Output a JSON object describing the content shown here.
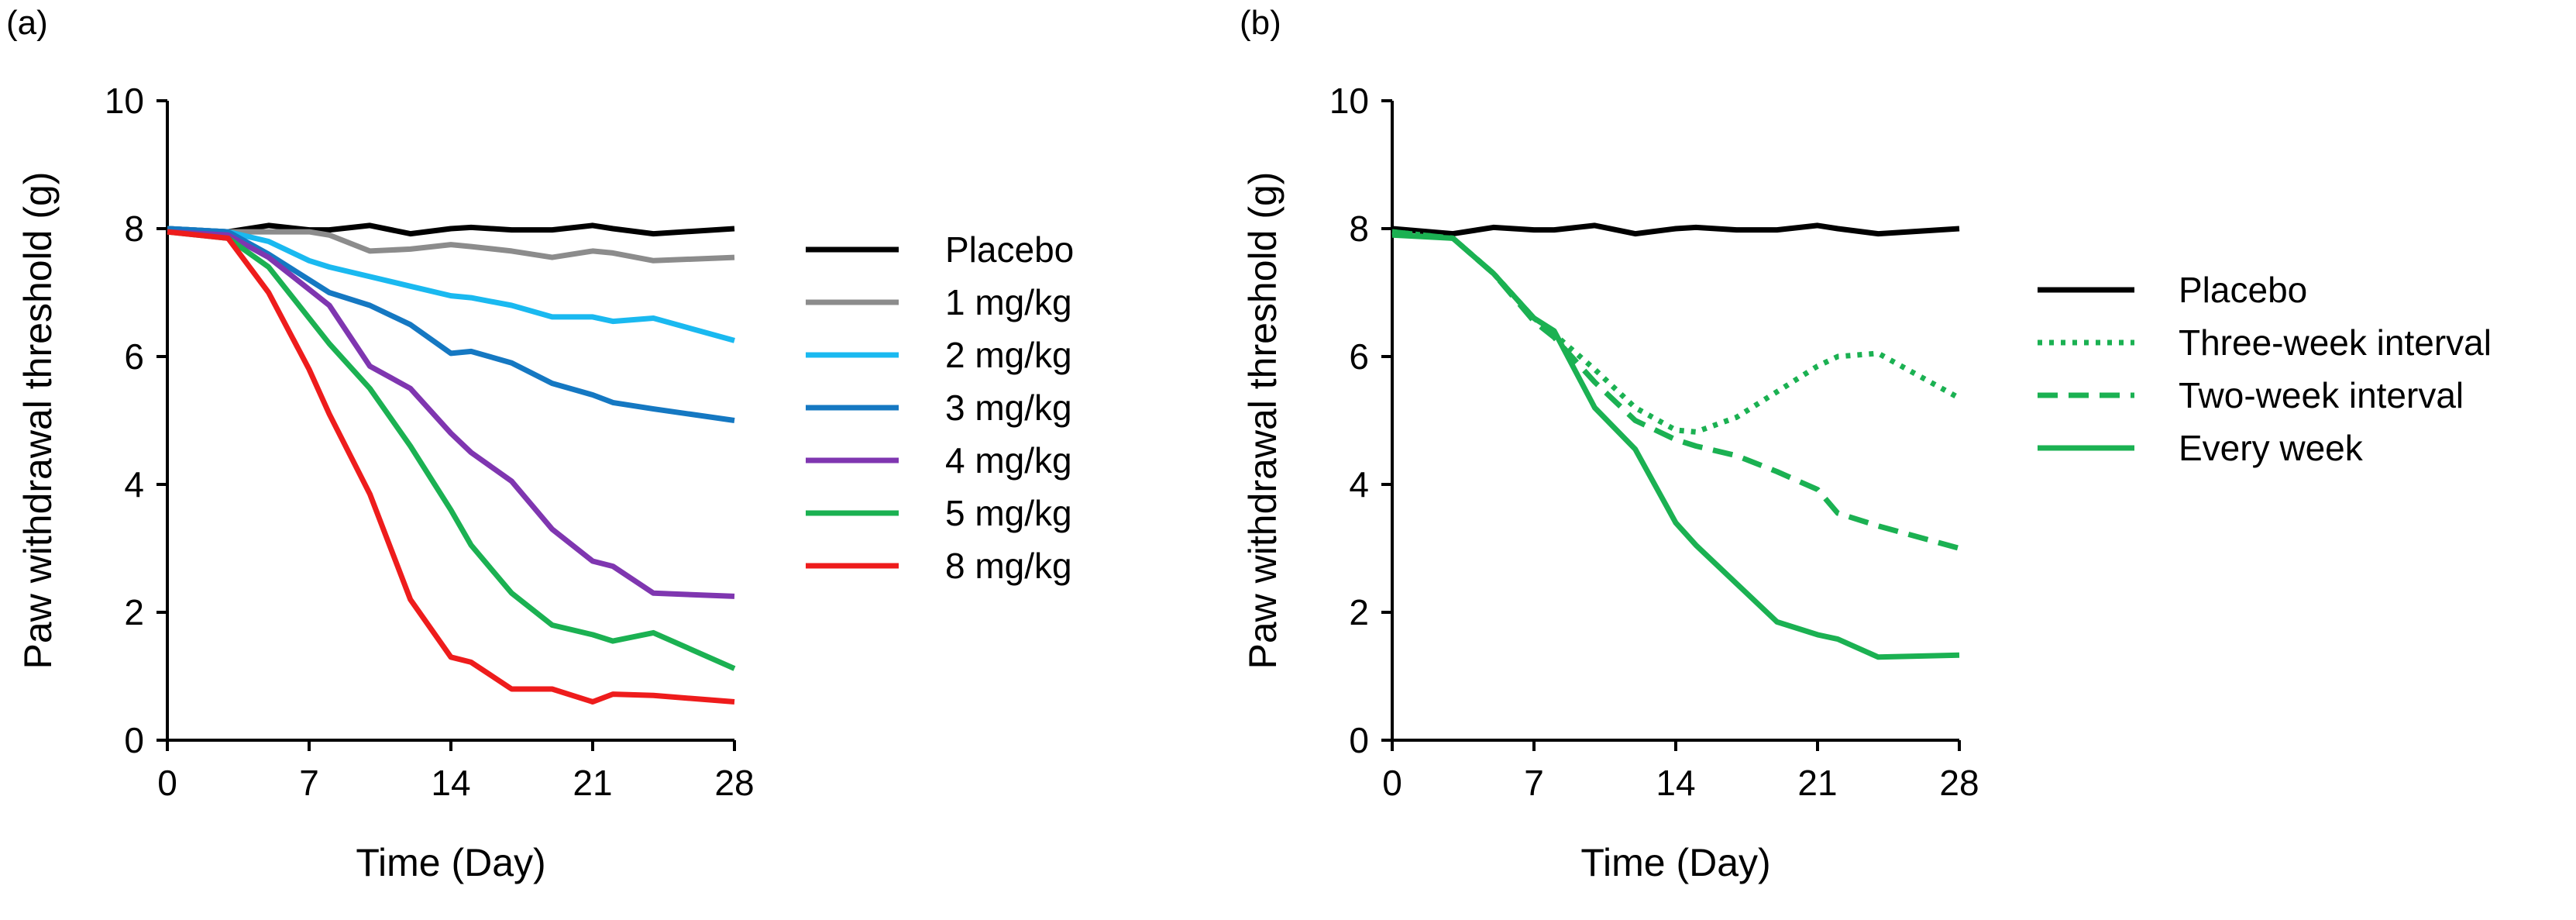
{
  "chart_data": [
    {
      "panel_label": "(a)",
      "type": "line",
      "xlabel": "Time (Day)",
      "ylabel": "Paw withdrawal threshold (g)",
      "xlim": [
        0,
        28
      ],
      "ylim": [
        0,
        10
      ],
      "xticks": [
        "0",
        "7",
        "14",
        "21",
        "28"
      ],
      "yticks": [
        "0",
        "2",
        "4",
        "6",
        "8",
        "10"
      ],
      "grid": false,
      "legend_position": "right",
      "x": [
        0,
        3,
        5,
        7,
        8,
        10,
        12,
        14,
        15,
        17,
        19,
        21,
        22,
        24,
        28
      ],
      "series": [
        {
          "name": "Placebo",
          "color": "#000000",
          "dash": "solid",
          "values": [
            8.0,
            7.95,
            8.05,
            7.98,
            7.98,
            8.05,
            7.92,
            8.0,
            8.02,
            7.98,
            7.98,
            8.05,
            8.0,
            7.92,
            8.0
          ]
        },
        {
          "name": "1 mg/kg",
          "color": "#8c8c8c",
          "dash": "solid",
          "values": [
            8.0,
            7.95,
            7.95,
            7.95,
            7.9,
            7.65,
            7.68,
            7.75,
            7.72,
            7.65,
            7.55,
            7.65,
            7.62,
            7.5,
            7.55
          ]
        },
        {
          "name": "2 mg/kg",
          "color": "#1ab9f0",
          "dash": "solid",
          "values": [
            8.0,
            7.95,
            7.8,
            7.5,
            7.4,
            7.25,
            7.1,
            6.95,
            6.92,
            6.8,
            6.62,
            6.62,
            6.55,
            6.6,
            6.25
          ]
        },
        {
          "name": "3 mg/kg",
          "color": "#1578c2",
          "dash": "solid",
          "values": [
            8.0,
            7.95,
            7.6,
            7.2,
            7.0,
            6.8,
            6.5,
            6.05,
            6.08,
            5.9,
            5.58,
            5.4,
            5.28,
            5.18,
            5.0
          ]
        },
        {
          "name": "4 mg/kg",
          "color": "#7f36b0",
          "dash": "solid",
          "values": [
            7.95,
            7.9,
            7.55,
            7.05,
            6.8,
            5.85,
            5.5,
            4.8,
            4.5,
            4.05,
            3.3,
            2.8,
            2.72,
            2.3,
            2.25
          ]
        },
        {
          "name": "5 mg/kg",
          "color": "#1bb152",
          "dash": "solid",
          "values": [
            7.95,
            7.85,
            7.4,
            6.6,
            6.2,
            5.5,
            4.6,
            3.6,
            3.05,
            2.3,
            1.8,
            1.65,
            1.55,
            1.68,
            1.12
          ]
        },
        {
          "name": "8 mg/kg",
          "color": "#ee1c1c",
          "dash": "solid",
          "values": [
            7.95,
            7.85,
            7.0,
            5.8,
            5.1,
            3.85,
            2.2,
            1.3,
            1.22,
            0.8,
            0.8,
            0.6,
            0.72,
            0.7,
            0.6
          ]
        }
      ]
    },
    {
      "panel_label": "(b)",
      "type": "line",
      "xlabel": "Time (Day)",
      "ylabel": "Paw withdrawal threshold (g)",
      "xlim": [
        0,
        28
      ],
      "ylim": [
        0,
        10
      ],
      "xticks": [
        "0",
        "7",
        "14",
        "21",
        "28"
      ],
      "yticks": [
        "0",
        "2",
        "4",
        "6",
        "8",
        "10"
      ],
      "grid": false,
      "legend_position": "right",
      "x": [
        0,
        3,
        5,
        7,
        8,
        10,
        12,
        14,
        15,
        17,
        19,
        21,
        22,
        24,
        28
      ],
      "series": [
        {
          "name": "Placebo",
          "color": "#000000",
          "dash": "solid",
          "values": [
            8.0,
            7.92,
            8.02,
            7.98,
            7.98,
            8.05,
            7.92,
            8.0,
            8.02,
            7.98,
            7.98,
            8.05,
            8.0,
            7.92,
            8.0
          ]
        },
        {
          "name": "Three-week interval",
          "color": "#1bb152",
          "dash": "dotted",
          "values": [
            7.95,
            7.85,
            7.3,
            6.6,
            6.35,
            5.8,
            5.2,
            4.85,
            4.82,
            5.05,
            5.45,
            5.85,
            6.0,
            6.05,
            5.35
          ]
        },
        {
          "name": "Two-week interval",
          "color": "#1bb152",
          "dash": "dashed",
          "values": [
            7.95,
            7.85,
            7.3,
            6.55,
            6.3,
            5.6,
            5.0,
            4.7,
            4.6,
            4.45,
            4.2,
            3.92,
            3.55,
            3.35,
            3.0
          ]
        },
        {
          "name": "Every week",
          "color": "#1bb152",
          "dash": "solid",
          "values": [
            7.9,
            7.85,
            7.3,
            6.6,
            6.4,
            5.2,
            4.55,
            3.4,
            3.05,
            2.45,
            1.85,
            1.65,
            1.58,
            1.3,
            1.33
          ]
        }
      ]
    }
  ]
}
